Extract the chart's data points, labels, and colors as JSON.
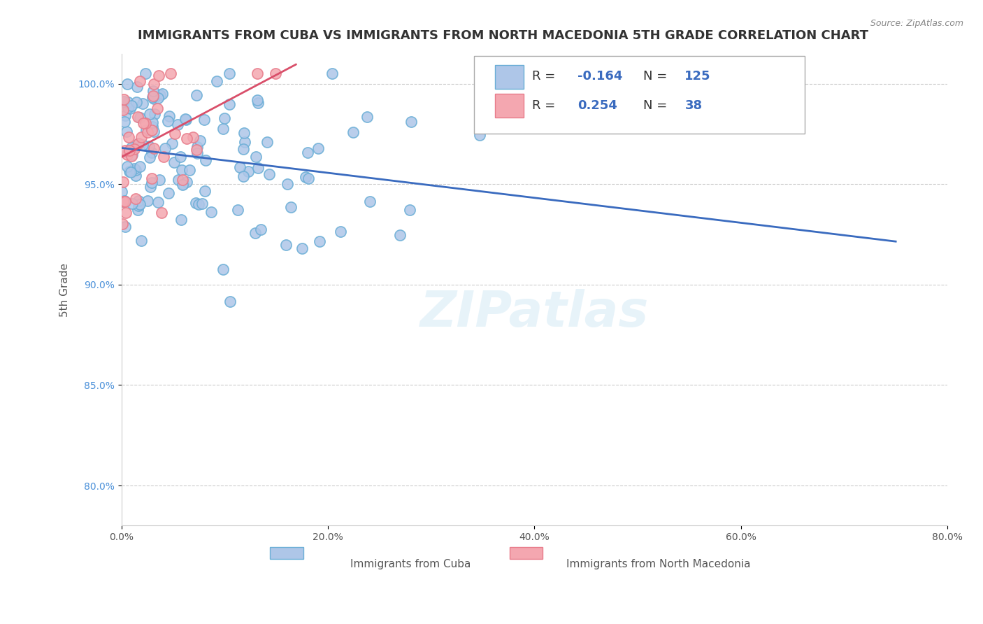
{
  "title": "IMMIGRANTS FROM CUBA VS IMMIGRANTS FROM NORTH MACEDONIA 5TH GRADE CORRELATION CHART",
  "source_text": "Source: ZipAtlas.com",
  "ylabel": "5th Grade",
  "xlabel_ticks": [
    "0.0%",
    "20.0%",
    "40.0%",
    "60.0%",
    "80.0%"
  ],
  "xlabel_vals": [
    0.0,
    20.0,
    40.0,
    60.0,
    80.0
  ],
  "ylabel_ticks": [
    "80.0%",
    "85.0%",
    "90.0%",
    "95.0%",
    "100.0%"
  ],
  "ylabel_vals": [
    80.0,
    85.0,
    90.0,
    95.0,
    100.0
  ],
  "xlim": [
    0.0,
    80.0
  ],
  "ylim": [
    78.0,
    101.5
  ],
  "legend_entries": [
    {
      "label": "R = -0.164   N = 125",
      "color": "#aec6e8"
    },
    {
      "label": "R =  0.254   N =  38",
      "color": "#f4a7b0"
    }
  ],
  "cuba_color": "#aec6e8",
  "cuba_edge": "#6aaed6",
  "macedonia_color": "#f4a7b0",
  "macedonia_edge": "#e87b8a",
  "cuba_line_color": "#3a6bbf",
  "macedonia_line_color": "#d94f6a",
  "R_cuba": -0.164,
  "N_cuba": 125,
  "R_macedonia": 0.254,
  "N_macedonia": 38,
  "watermark": "ZIPatlas",
  "background_color": "#ffffff",
  "grid_color": "#cccccc",
  "title_fontsize": 13,
  "axis_label_fontsize": 11
}
